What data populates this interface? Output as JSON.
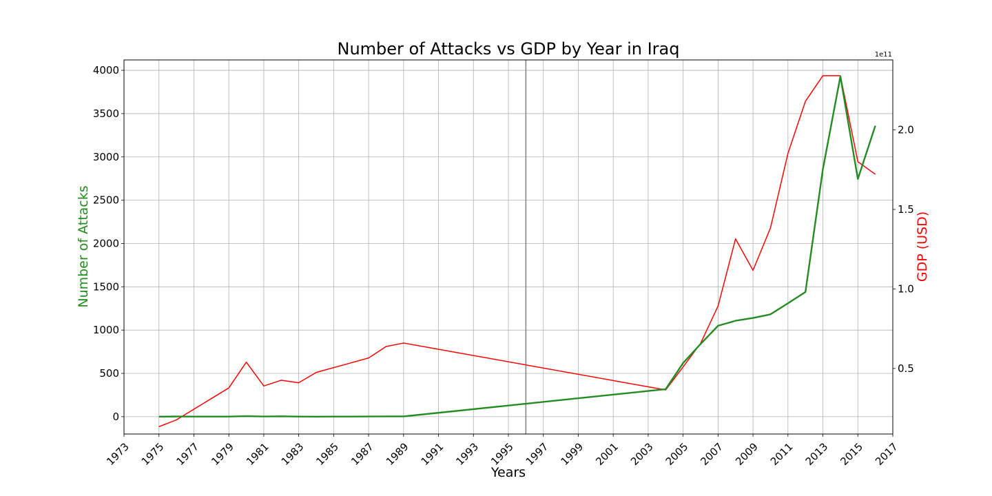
{
  "chart_data": {
    "type": "line",
    "title": "Number of Attacks vs GDP by Year in Iraq",
    "xlabel": "Years",
    "ylabel": "Number of Attacks",
    "y2label": "GDP (USD)",
    "y2_offset_label": "1e11",
    "xlim": [
      1973,
      2017
    ],
    "ylim": [
      -200,
      4120
    ],
    "y2lim": [
      0.088,
      2.44
    ],
    "x_ticks": [
      1973,
      1975,
      1977,
      1979,
      1981,
      1983,
      1985,
      1987,
      1989,
      1991,
      1993,
      1995,
      1997,
      1999,
      2001,
      2003,
      2005,
      2007,
      2009,
      2011,
      2013,
      2015,
      2017
    ],
    "y_ticks": [
      0,
      500,
      1000,
      1500,
      2000,
      2500,
      3000,
      3500,
      4000
    ],
    "y2_ticks": [
      0.5,
      1.0,
      1.5,
      2.0
    ],
    "y2_tick_labels": [
      "0.5",
      "1.0",
      "1.5",
      "2.0"
    ],
    "grid": true,
    "vertical_line_x": 1996,
    "colors": {
      "attacks": "#228b22",
      "gdp": "#ff0000",
      "vline": "#808080"
    },
    "series": [
      {
        "axis": "left",
        "x": [
          1975,
          1976,
          1977,
          1978,
          1979,
          1980,
          1981,
          1982,
          1983,
          1984,
          1985,
          1986,
          1987,
          1988,
          1989,
          2004,
          2005,
          2006,
          2007,
          2008,
          2009,
          2010,
          2011,
          2012,
          2013,
          2014,
          2015,
          2016
        ],
        "values": [
          0,
          2,
          1,
          1,
          1,
          6,
          2,
          4,
          1,
          0,
          1,
          1,
          2,
          3,
          3,
          318,
          620,
          840,
          1050,
          1108,
          1140,
          1182,
          1310,
          1440,
          2860,
          3930,
          2745,
          3360
        ]
      },
      {
        "axis": "right",
        "x": [
          1975,
          1976,
          1979,
          1980,
          1981,
          1982,
          1983,
          1984,
          1987,
          1988,
          1989,
          2004,
          2005,
          2006,
          2007,
          2008,
          2009,
          2010,
          2011,
          2012,
          2013,
          2014,
          2015,
          2016
        ],
        "values": [
          0.134,
          0.177,
          0.378,
          0.54,
          0.39,
          0.426,
          0.41,
          0.475,
          0.566,
          0.638,
          0.66,
          0.365,
          0.51,
          0.658,
          0.893,
          1.315,
          1.117,
          1.384,
          1.853,
          2.18,
          2.341,
          2.341,
          1.8,
          1.721
        ]
      }
    ]
  }
}
